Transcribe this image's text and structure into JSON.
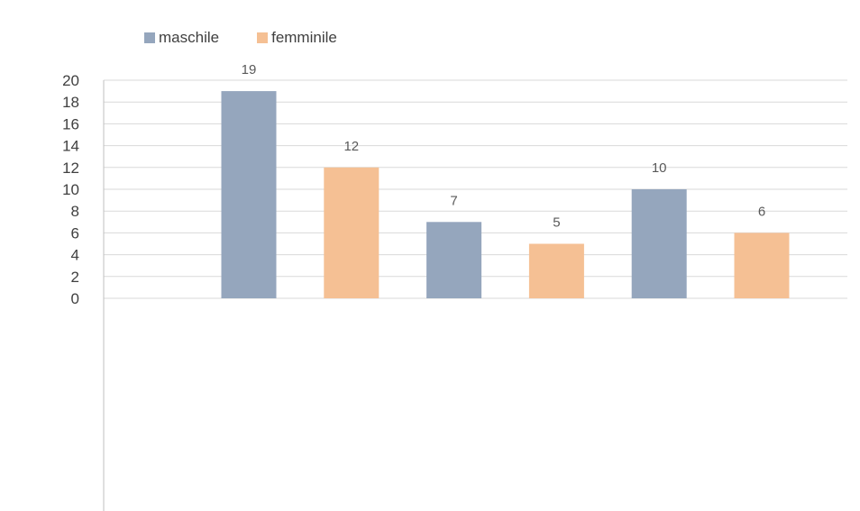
{
  "colors": {
    "maschile": "#95a6bd",
    "femminile": "#f5c094",
    "grid": "#d9d9d9",
    "axis": "#bfbfbf",
    "tick_text": "#404040",
    "label_text": "#595959"
  },
  "legend": {
    "maschile": "maschile",
    "femminile": "femminile"
  },
  "chart_data": {
    "type": "bar",
    "title": "",
    "xlabel": "",
    "ylabel": "",
    "ylim": [
      0,
      20
    ],
    "yticks": [
      0,
      2,
      4,
      6,
      8,
      10,
      12,
      14,
      16,
      18,
      20
    ],
    "grid": true,
    "legend_position": "top-left",
    "series": [
      {
        "name": "maschile",
        "values": [
          19,
          7,
          10
        ]
      },
      {
        "name": "femminile",
        "values": [
          12,
          5,
          6
        ]
      }
    ]
  }
}
